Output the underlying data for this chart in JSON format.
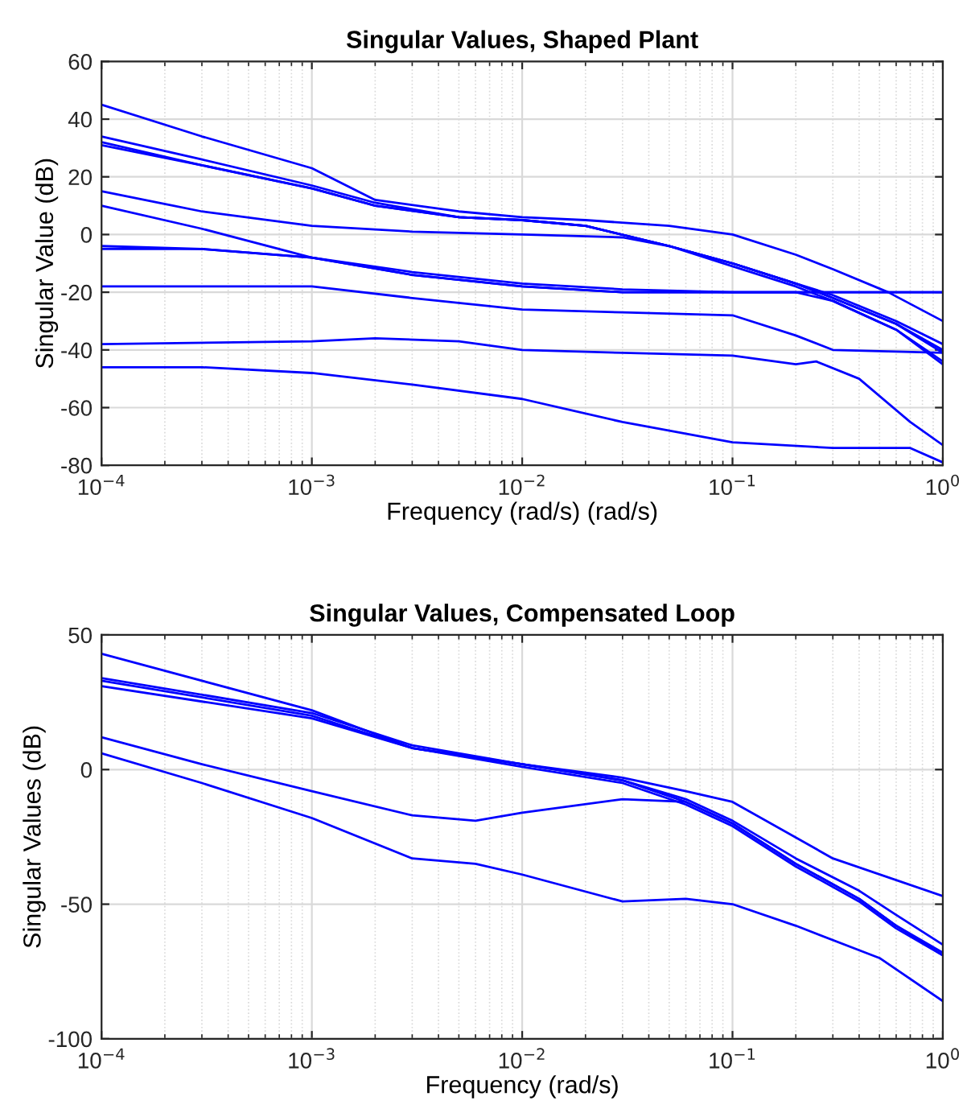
{
  "chart_data": [
    {
      "type": "line",
      "title": "Singular Values, Shaped Plant",
      "xlabel": "Frequency (rad/s) (rad/s)",
      "ylabel": "Singular Value (dB)",
      "log": "x",
      "grid": true,
      "line_style": "solid",
      "marker": "none",
      "xlim": [
        0.0001,
        1
      ],
      "xticks": [
        {
          "value": 0.0001,
          "label": "10$^{−4}$"
        },
        {
          "value": 0.001,
          "label": "10$^{−3}$"
        },
        {
          "value": 0.01,
          "label": "10$^{−2}$"
        },
        {
          "value": 0.1,
          "label": "10$^{−1}$"
        },
        {
          "value": 1,
          "label": "10$^{0}$"
        }
      ],
      "ylim": [
        -80,
        60
      ],
      "yticks": [
        -80,
        -60,
        -40,
        -20,
        0,
        20,
        40,
        60
      ],
      "series": [
        {
          "color": "#0000ff",
          "x": [
            0.0001,
            0.0003,
            0.001,
            0.002,
            0.005,
            0.01,
            0.02,
            0.05,
            0.1,
            0.2,
            0.3,
            0.55,
            1
          ],
          "values": [
            45,
            34,
            23,
            12,
            8,
            6,
            5,
            3,
            0,
            -7,
            -12,
            -20,
            -30
          ]
        },
        {
          "color": "#0000ff",
          "x": [
            0.0001,
            0.0003,
            0.001,
            0.002,
            0.005,
            0.01,
            0.02,
            0.05,
            0.1,
            0.2,
            0.3,
            0.6,
            1
          ],
          "values": [
            34,
            26,
            17,
            11,
            6,
            5,
            3,
            -4,
            -10,
            -17,
            -21,
            -30,
            -38
          ]
        },
        {
          "color": "#0000ff",
          "x": [
            0.0001,
            0.0003,
            0.001,
            0.002,
            0.005,
            0.01,
            0.02,
            0.05,
            0.1,
            0.2,
            0.3,
            0.6,
            1
          ],
          "values": [
            31,
            24,
            16,
            10,
            6,
            5,
            3,
            -4,
            -10,
            -17,
            -22,
            -31,
            -40
          ]
        },
        {
          "color": "#0000ff",
          "x": [
            0.0001,
            0.0003,
            0.001,
            0.002,
            0.005,
            0.01,
            0.02,
            0.05,
            0.1,
            0.2,
            0.3,
            0.6,
            1
          ],
          "values": [
            32,
            24,
            16,
            10,
            6,
            5,
            3,
            -4,
            -11,
            -18,
            -23,
            -33,
            -44
          ]
        },
        {
          "color": "#0000ff",
          "x": [
            0.0001,
            0.0003,
            0.001,
            0.003,
            0.01,
            0.03,
            0.05,
            0.1,
            0.2,
            0.3,
            0.6,
            1
          ],
          "values": [
            15,
            8,
            3,
            1,
            0,
            -1,
            -4,
            -10,
            -17,
            -22,
            -31,
            -41
          ]
        },
        {
          "color": "#0000ff",
          "x": [
            0.0001,
            0.0003,
            0.001,
            0.003,
            0.01,
            0.03,
            0.1,
            0.3,
            1
          ],
          "values": [
            10,
            2,
            -8,
            -14,
            -18,
            -20,
            -20,
            -20,
            -20
          ]
        },
        {
          "color": "#0000ff",
          "x": [
            0.0001,
            0.0003,
            0.001,
            0.003,
            0.01,
            0.03,
            0.1,
            0.3,
            1
          ],
          "values": [
            -5,
            -5,
            -8,
            -14,
            -18,
            -20,
            -20,
            -20,
            -20
          ]
        },
        {
          "color": "#0000ff",
          "x": [
            0.0001,
            0.0003,
            0.001,
            0.003,
            0.01,
            0.03,
            0.1,
            0.2,
            0.3,
            0.6,
            1
          ],
          "values": [
            -4,
            -5,
            -8,
            -13,
            -17,
            -19,
            -20,
            -20,
            -23,
            -33,
            -45
          ]
        },
        {
          "color": "#0000ff",
          "x": [
            0.0001,
            0.001,
            0.003,
            0.01,
            0.03,
            0.1,
            0.2,
            0.3,
            1
          ],
          "values": [
            -18,
            -18,
            -22,
            -26,
            -27,
            -28,
            -35,
            -40,
            -41
          ]
        },
        {
          "color": "#0000ff",
          "x": [
            0.0001,
            0.001,
            0.002,
            0.005,
            0.01,
            0.03,
            0.1,
            0.2,
            0.25,
            0.4,
            0.7,
            1
          ],
          "values": [
            -38,
            -37,
            -36,
            -37,
            -40,
            -41,
            -42,
            -45,
            -44,
            -50,
            -65,
            -73
          ]
        },
        {
          "color": "#0000ff",
          "x": [
            0.0001,
            0.0003,
            0.001,
            0.003,
            0.01,
            0.03,
            0.1,
            0.3,
            0.7,
            1
          ],
          "values": [
            -46,
            -46,
            -48,
            -52,
            -57,
            -65,
            -72,
            -74,
            -74,
            -79
          ]
        }
      ]
    },
    {
      "type": "line",
      "title": "Singular Values, Compensated Loop",
      "xlabel": "Frequency (rad/s)",
      "ylabel": "Singular Values (dB)",
      "log": "x",
      "grid": true,
      "line_style": "solid",
      "marker": "none",
      "xlim": [
        0.0001,
        1
      ],
      "xticks": [
        {
          "value": 0.0001,
          "label": "10$^{−4}$"
        },
        {
          "value": 0.001,
          "label": "10$^{−3}$"
        },
        {
          "value": 0.01,
          "label": "10$^{−2}$"
        },
        {
          "value": 0.1,
          "label": "10$^{−1}$"
        },
        {
          "value": 1,
          "label": "10$^{0}$"
        }
      ],
      "ylim": [
        -100,
        50
      ],
      "yticks": [
        -100,
        -50,
        0,
        50
      ],
      "series": [
        {
          "color": "#0000ff",
          "x": [
            0.0001,
            0.001,
            0.003,
            0.01,
            0.03,
            0.06,
            0.1,
            0.3,
            1
          ],
          "values": [
            43,
            22,
            8,
            2,
            -3,
            -8,
            -12,
            -33,
            -47
          ]
        },
        {
          "color": "#0000ff",
          "x": [
            0.0001,
            0.001,
            0.003,
            0.01,
            0.03,
            0.06,
            0.1,
            0.2,
            0.4,
            0.6,
            1
          ],
          "values": [
            34,
            21,
            9,
            2,
            -4,
            -11,
            -19,
            -33,
            -45,
            -54,
            -65
          ]
        },
        {
          "color": "#0000ff",
          "x": [
            0.0001,
            0.001,
            0.003,
            0.01,
            0.03,
            0.06,
            0.1,
            0.2,
            0.4,
            0.6,
            1
          ],
          "values": [
            33,
            20,
            8,
            2,
            -4,
            -12,
            -20,
            -35,
            -48,
            -58,
            -68
          ]
        },
        {
          "color": "#0000ff",
          "x": [
            0.0001,
            0.001,
            0.003,
            0.01,
            0.03,
            0.06,
            0.1,
            0.2,
            0.4,
            0.6,
            1
          ],
          "values": [
            31,
            19,
            8,
            1,
            -5,
            -13,
            -21,
            -36,
            -49,
            -59,
            -69
          ]
        },
        {
          "color": "#0000ff",
          "x": [
            0.0001,
            0.0003,
            0.001,
            0.003,
            0.006,
            0.01,
            0.03,
            0.06,
            0.1,
            0.2,
            0.4,
            0.6,
            1
          ],
          "values": [
            12,
            2,
            -8,
            -17,
            -19,
            -16,
            -11,
            -12,
            -20,
            -35,
            -48,
            -58,
            -69
          ]
        },
        {
          "color": "#0000ff",
          "x": [
            0.0001,
            0.0003,
            0.001,
            0.003,
            0.006,
            0.01,
            0.03,
            0.06,
            0.1,
            0.2,
            0.5,
            1
          ],
          "values": [
            6,
            -5,
            -18,
            -33,
            -35,
            -39,
            -49,
            -48,
            -50,
            -58,
            -70,
            -86
          ]
        }
      ]
    }
  ]
}
